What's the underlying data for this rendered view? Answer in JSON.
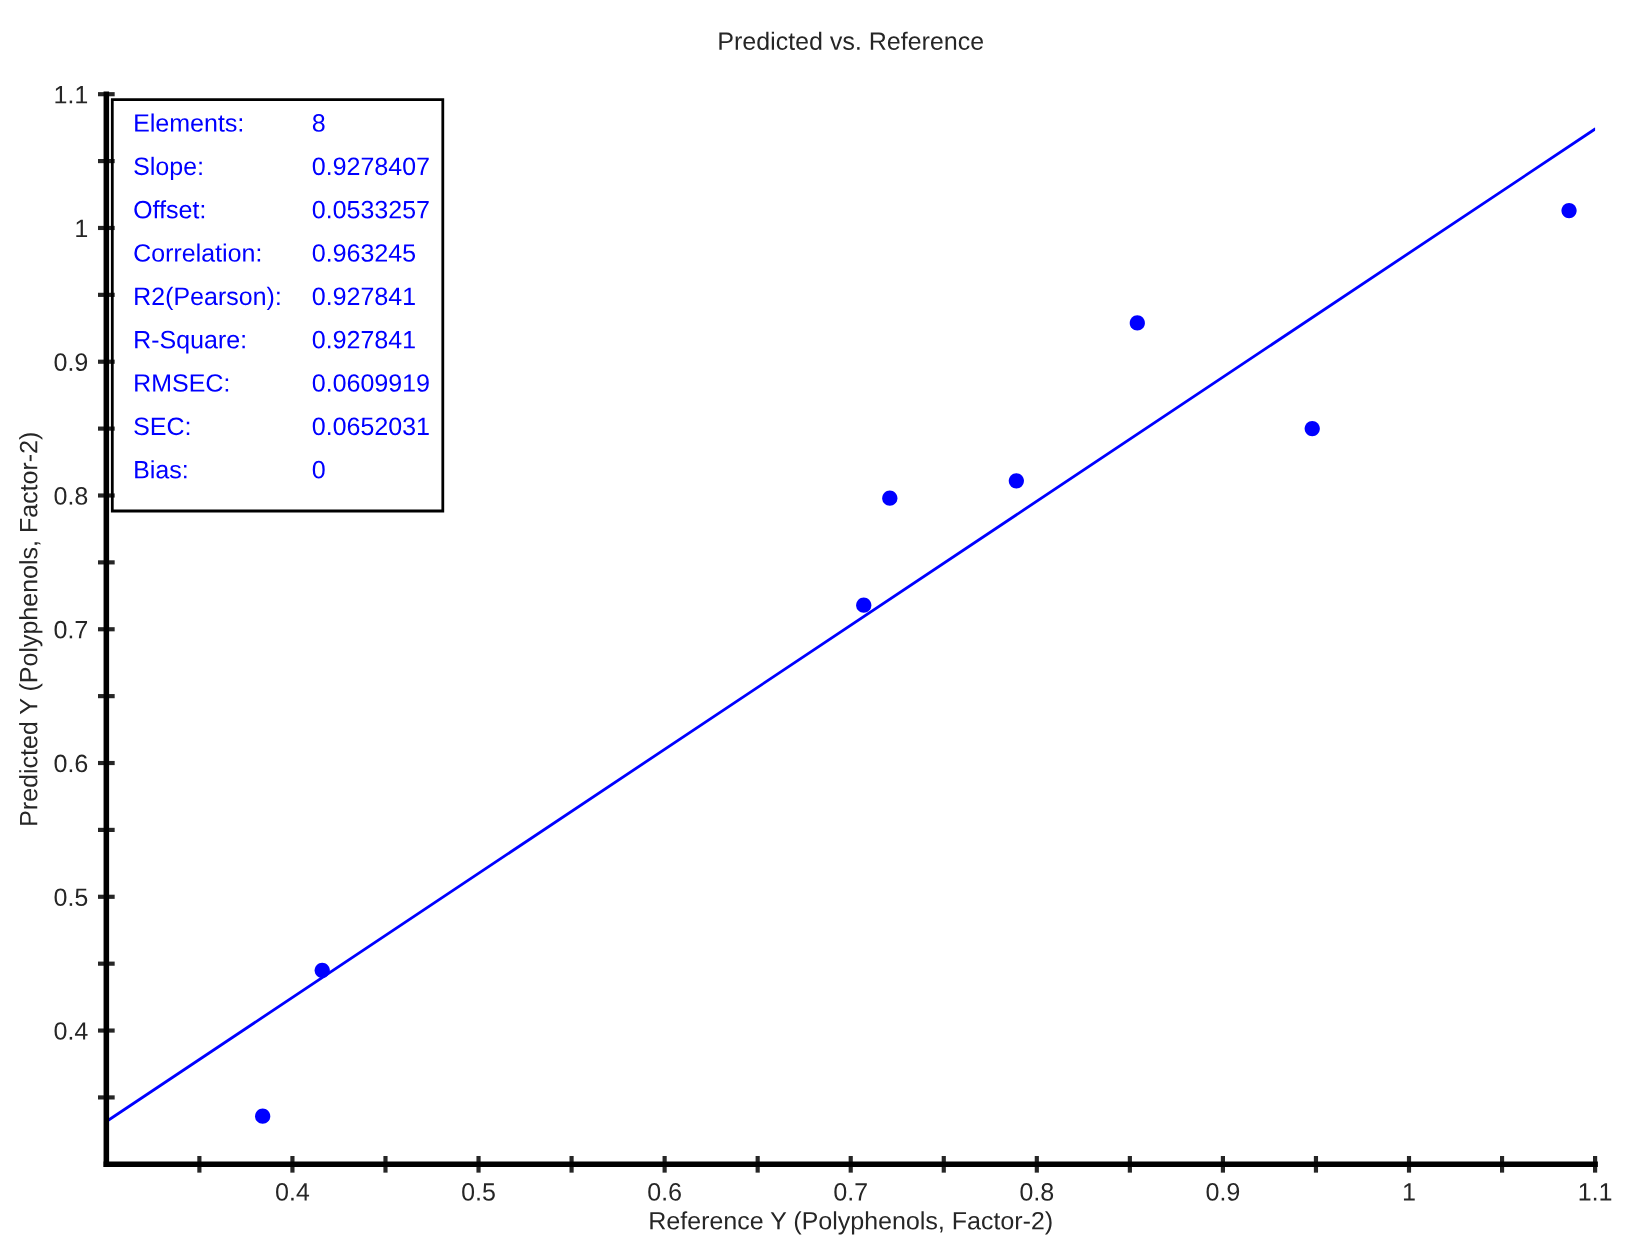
{
  "chart_data": {
    "type": "scatter",
    "title": "Predicted vs. Reference",
    "xlabel": "Reference Y (Polyphenols, Factor-2)",
    "ylabel": "Predicted Y (Polyphenols, Factor-2)",
    "series": [
      {
        "color": "#0000ff",
        "marker": "circle",
        "x": [
          0.384,
          0.416,
          0.707,
          0.721,
          0.789,
          0.854,
          0.948,
          1.086
        ],
        "values": [
          0.336,
          0.445,
          0.718,
          0.798,
          0.811,
          0.929,
          0.85,
          1.013
        ]
      },
      {
        "type": "line",
        "color": "#0000ff",
        "marker": "none",
        "line_style": "solid",
        "x": [
          0.3,
          1.1
        ],
        "values": [
          0.332,
          1.074
        ]
      }
    ],
    "xlim": [
      0.3,
      1.1
    ],
    "ylim": [
      0.3,
      1.1
    ],
    "xticks": [
      {
        "value": 0.35,
        "label": null
      },
      0.4,
      {
        "value": 0.45,
        "label": null
      },
      0.5,
      {
        "value": 0.55,
        "label": null
      },
      0.6,
      {
        "value": 0.65,
        "label": null
      },
      0.7,
      {
        "value": 0.75,
        "label": null
      },
      0.8,
      {
        "value": 0.85,
        "label": null
      },
      0.9,
      {
        "value": 0.95,
        "label": null
      },
      1,
      {
        "value": 1.05,
        "label": null
      },
      1.1
    ],
    "yticks": [
      {
        "value": 0.35,
        "label": null
      },
      0.4,
      {
        "value": 0.45,
        "label": null
      },
      0.5,
      {
        "value": 0.55,
        "label": null
      },
      0.6,
      {
        "value": 0.65,
        "label": null
      },
      0.7,
      {
        "value": 0.75,
        "label": null
      },
      0.8,
      {
        "value": 0.85,
        "label": null
      },
      0.9,
      {
        "value": 0.95,
        "label": null
      },
      1,
      {
        "value": 1.05,
        "label": null
      },
      1.1
    ],
    "grid": false,
    "legend": false,
    "annotations": [
      "Elements:",
      "8",
      "Slope:",
      "0.9278407",
      "Offset:",
      "0.0533257",
      "Correlation:",
      "0.963245",
      "R2(Pearson):",
      "0.927841",
      "R-Square:",
      "0.927841",
      "RMSEC:",
      "0.0609919",
      "SEC:",
      "0.0652031",
      "Bias:",
      "0"
    ]
  }
}
